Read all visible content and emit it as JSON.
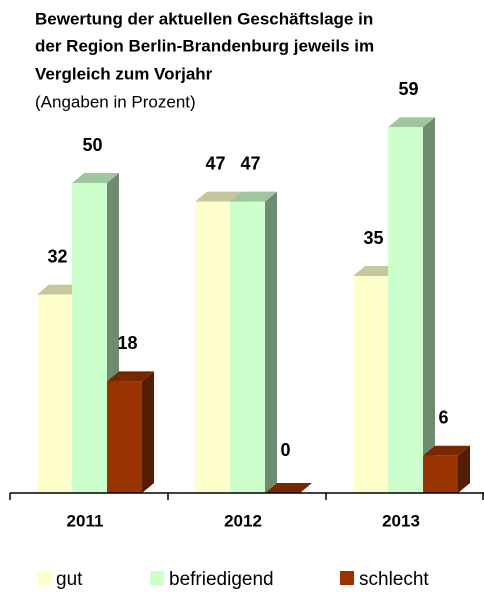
{
  "chart_data": {
    "type": "bar3d",
    "title_lines": [
      "Bewertung der aktuellen Geschäftslage in",
      "der Region Berlin-Brandenburg jeweils im",
      "Vergleich zum Vorjahr"
    ],
    "subtitle": "(Angaben in Prozent)",
    "categories": [
      "2011",
      "2012",
      "2013"
    ],
    "series": [
      {
        "name": "gut",
        "color": "#ffffcc",
        "values": [
          32,
          47,
          35
        ]
      },
      {
        "name": "befriedigend",
        "color": "#ccffcc",
        "values": [
          50,
          47,
          59
        ]
      },
      {
        "name": "schlecht",
        "color": "#993300",
        "values": [
          18,
          0,
          6
        ]
      }
    ],
    "ylim": [
      0,
      60
    ]
  }
}
